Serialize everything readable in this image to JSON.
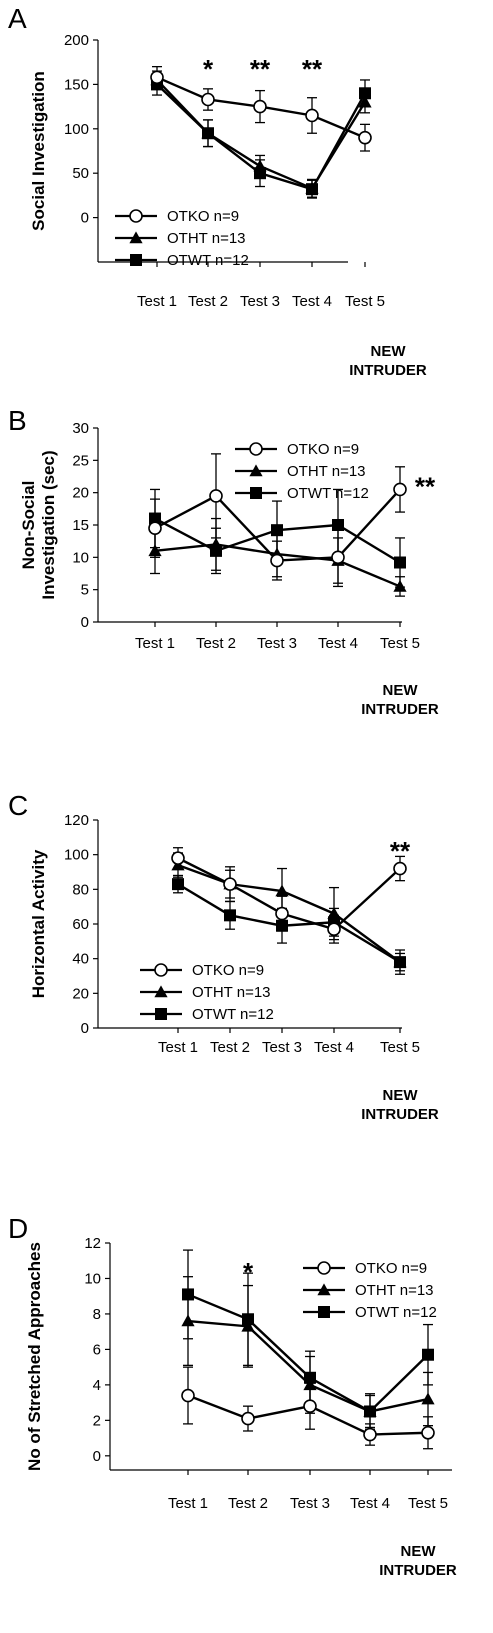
{
  "chart_data": [
    {
      "panel_label": "A",
      "type": "line",
      "ylabel": "Social Investigation",
      "ylim": [
        -50,
        200
      ],
      "yticks": [
        0,
        50,
        100,
        150,
        200
      ],
      "categories": [
        "Test 1",
        "Test 2",
        "Test 3",
        "Test 4",
        "Test 5"
      ],
      "x_note": [
        "NEW",
        "INTRUDER"
      ],
      "legend_position": "bottom-left",
      "series": [
        {
          "name": "OTKO n=9",
          "marker": "circle-open",
          "values": [
            158,
            133,
            125,
            115,
            90
          ],
          "errors": [
            12,
            12,
            18,
            20,
            15
          ]
        },
        {
          "name": "OTHT n=13",
          "marker": "triangle",
          "values": [
            155,
            95,
            58,
            33,
            130
          ],
          "errors": [
            10,
            15,
            12,
            10,
            12
          ]
        },
        {
          "name": "OTWT n=12",
          "marker": "square",
          "values": [
            150,
            95,
            50,
            32,
            140
          ],
          "errors": [
            12,
            15,
            15,
            10,
            15
          ]
        }
      ],
      "annotations": [
        {
          "x_index": 1,
          "text": "*"
        },
        {
          "x_index": 2,
          "text": "**"
        },
        {
          "x_index": 3,
          "text": "**"
        }
      ]
    },
    {
      "panel_label": "B",
      "type": "line",
      "ylabel": "Non-Social\nInvestigation (sec)",
      "ylim": [
        0,
        30
      ],
      "yticks": [
        0,
        5,
        10,
        15,
        20,
        25,
        30
      ],
      "categories": [
        "Test 1",
        "Test 2",
        "Test 3",
        "Test 4",
        "Test 5"
      ],
      "x_note": [
        "NEW",
        "INTRUDER"
      ],
      "legend_position": "top-right",
      "series": [
        {
          "name": "OTKO n=9",
          "marker": "circle-open",
          "values": [
            14.5,
            19.5,
            9.5,
            10,
            20.5
          ],
          "errors": [
            4.5,
            6.5,
            3,
            4.5,
            3.5
          ]
        },
        {
          "name": "OTHT n=13",
          "marker": "triangle",
          "values": [
            11,
            12,
            10.5,
            9.5,
            5.5
          ],
          "errors": [
            3.5,
            4,
            3.5,
            3.5,
            1.5
          ]
        },
        {
          "name": "OTWT n=12",
          "marker": "square",
          "values": [
            16,
            11,
            14.2,
            15,
            9.2
          ],
          "errors": [
            4.5,
            3.5,
            4.5,
            5.5,
            3.8
          ]
        }
      ],
      "annotations": [
        {
          "x_index": 4,
          "text": "**"
        }
      ]
    },
    {
      "panel_label": "C",
      "type": "line",
      "ylabel": "Horizontal Activity",
      "ylim": [
        0,
        120
      ],
      "yticks": [
        0,
        20,
        40,
        60,
        80,
        100,
        120
      ],
      "categories": [
        "Test 1",
        "Test 2",
        "Test 3",
        "Test 4",
        "Test 5"
      ],
      "x_note": [
        "NEW",
        "INTRUDER"
      ],
      "legend_position": "bottom-left",
      "series": [
        {
          "name": "OTKO n=9",
          "marker": "circle-open",
          "values": [
            98,
            83,
            66,
            57,
            92
          ],
          "errors": [
            6,
            8,
            10,
            8,
            7
          ]
        },
        {
          "name": "OTHT n=13",
          "marker": "triangle",
          "values": [
            94,
            83,
            79,
            66,
            38
          ],
          "errors": [
            7,
            10,
            13,
            15,
            7
          ]
        },
        {
          "name": "OTWT n=12",
          "marker": "square",
          "values": [
            83,
            65,
            59,
            61,
            38
          ],
          "errors": [
            5,
            8,
            10,
            8,
            5
          ]
        }
      ],
      "annotations": [
        {
          "x_index": 4,
          "text": "**"
        }
      ]
    },
    {
      "panel_label": "D",
      "type": "line",
      "ylabel": "No of Stretched Approaches",
      "ylim": [
        -0.8,
        12
      ],
      "yticks": [
        0,
        2,
        4,
        6,
        8,
        10,
        12
      ],
      "categories": [
        "Test 1",
        "Test 2",
        "Test 3",
        "Test 4",
        "Test 5"
      ],
      "x_note": [
        "NEW",
        "INTRUDER"
      ],
      "legend_position": "top-right",
      "series": [
        {
          "name": "OTKO n=9",
          "marker": "circle-open",
          "values": [
            3.4,
            2.1,
            2.8,
            1.2,
            1.3
          ],
          "errors": [
            1.6,
            0.7,
            1.3,
            0.6,
            0.9
          ]
        },
        {
          "name": "OTHT n=13",
          "marker": "triangle",
          "values": [
            7.6,
            7.3,
            4.0,
            2.5,
            3.2
          ],
          "errors": [
            2.5,
            2.3,
            1.6,
            1.0,
            1.5
          ]
        },
        {
          "name": "OTWT n=12",
          "marker": "square",
          "values": [
            9.1,
            7.7,
            4.4,
            2.5,
            5.7
          ],
          "errors": [
            2.5,
            2.6,
            1.5,
            0.9,
            1.7
          ]
        }
      ],
      "annotations": [
        {
          "x_index": 1,
          "text": "*"
        }
      ]
    }
  ]
}
